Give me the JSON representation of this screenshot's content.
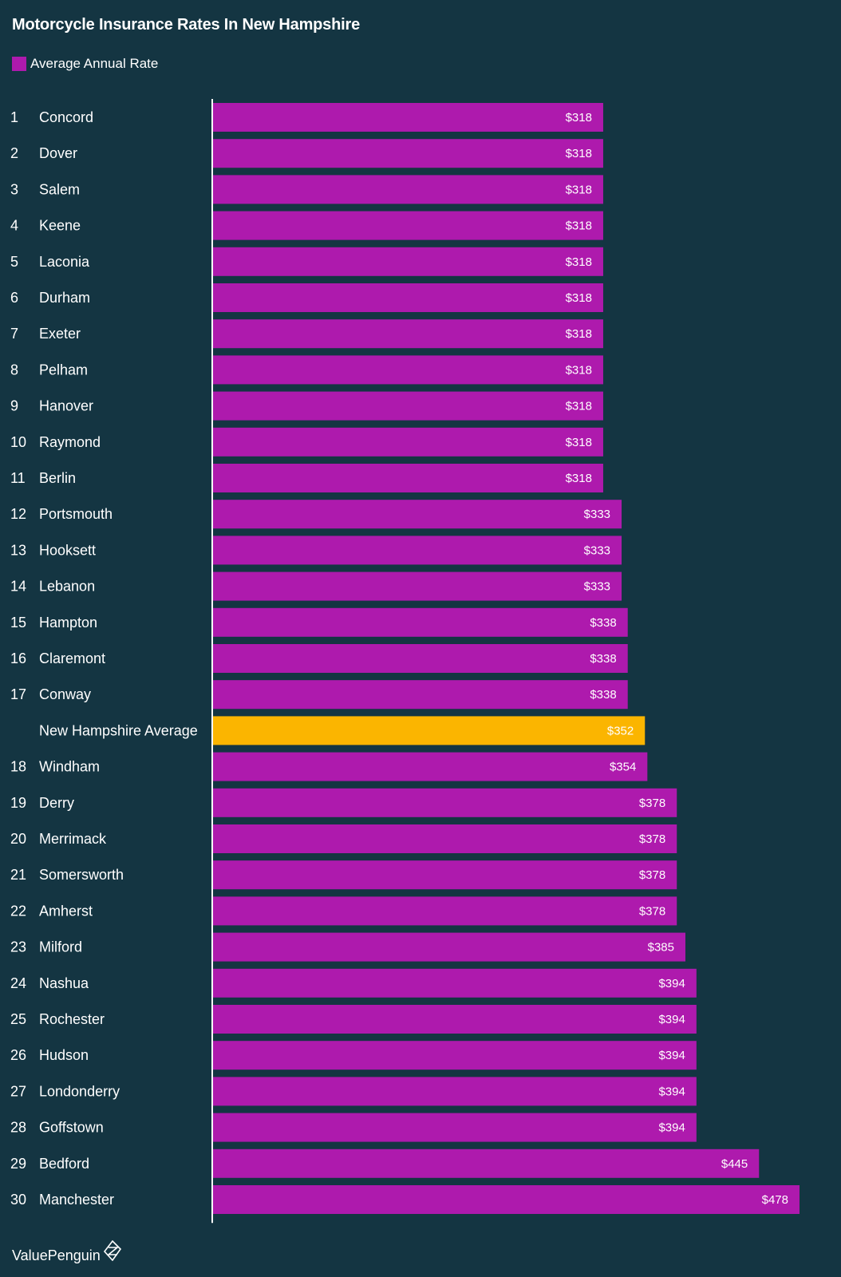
{
  "chart_data": {
    "type": "bar",
    "orientation": "horizontal",
    "title": "Motorcycle Insurance Rates In New Hampshire",
    "legend": {
      "label": "Average Annual Rate",
      "placement": "top-left"
    },
    "xlim": [
      0,
      478
    ],
    "grid": false,
    "series_color": "#ae1aad",
    "highlight_color": "#fbb500",
    "rows": [
      {
        "rank": "1",
        "city": "Concord",
        "value": 318,
        "label": "$318"
      },
      {
        "rank": "2",
        "city": "Dover",
        "value": 318,
        "label": "$318"
      },
      {
        "rank": "3",
        "city": "Salem",
        "value": 318,
        "label": "$318"
      },
      {
        "rank": "4",
        "city": "Keene",
        "value": 318,
        "label": "$318"
      },
      {
        "rank": "5",
        "city": "Laconia",
        "value": 318,
        "label": "$318"
      },
      {
        "rank": "6",
        "city": "Durham",
        "value": 318,
        "label": "$318"
      },
      {
        "rank": "7",
        "city": "Exeter",
        "value": 318,
        "label": "$318"
      },
      {
        "rank": "8",
        "city": "Pelham",
        "value": 318,
        "label": "$318"
      },
      {
        "rank": "9",
        "city": "Hanover",
        "value": 318,
        "label": "$318"
      },
      {
        "rank": "10",
        "city": "Raymond",
        "value": 318,
        "label": "$318"
      },
      {
        "rank": "11",
        "city": "Berlin",
        "value": 318,
        "label": "$318"
      },
      {
        "rank": "12",
        "city": "Portsmouth",
        "value": 333,
        "label": "$333"
      },
      {
        "rank": "13",
        "city": "Hooksett",
        "value": 333,
        "label": "$333"
      },
      {
        "rank": "14",
        "city": "Lebanon",
        "value": 333,
        "label": "$333"
      },
      {
        "rank": "15",
        "city": "Hampton",
        "value": 338,
        "label": "$338"
      },
      {
        "rank": "16",
        "city": "Claremont",
        "value": 338,
        "label": "$338"
      },
      {
        "rank": "17",
        "city": "Conway",
        "value": 338,
        "label": "$338"
      },
      {
        "rank": "",
        "city": "New Hampshire Average",
        "value": 352,
        "label": "$352",
        "highlight": true
      },
      {
        "rank": "18",
        "city": "Windham",
        "value": 354,
        "label": "$354"
      },
      {
        "rank": "19",
        "city": "Derry",
        "value": 378,
        "label": "$378"
      },
      {
        "rank": "20",
        "city": "Merrimack",
        "value": 378,
        "label": "$378"
      },
      {
        "rank": "21",
        "city": "Somersworth",
        "value": 378,
        "label": "$378"
      },
      {
        "rank": "22",
        "city": "Amherst",
        "value": 378,
        "label": "$378"
      },
      {
        "rank": "23",
        "city": "Milford",
        "value": 385,
        "label": "$385"
      },
      {
        "rank": "24",
        "city": "Nashua",
        "value": 394,
        "label": "$394"
      },
      {
        "rank": "25",
        "city": "Rochester",
        "value": 394,
        "label": "$394"
      },
      {
        "rank": "26",
        "city": "Hudson",
        "value": 394,
        "label": "$394"
      },
      {
        "rank": "27",
        "city": "Londonderry",
        "value": 394,
        "label": "$394"
      },
      {
        "rank": "28",
        "city": "Goffstown",
        "value": 394,
        "label": "$394"
      },
      {
        "rank": "29",
        "city": "Bedford",
        "value": 445,
        "label": "$445"
      },
      {
        "rank": "30",
        "city": "Manchester",
        "value": 478,
        "label": "$478"
      }
    ]
  },
  "footer": {
    "brand": "ValuePenguin",
    "logo_icon": "valuepenguin-logo-icon"
  }
}
